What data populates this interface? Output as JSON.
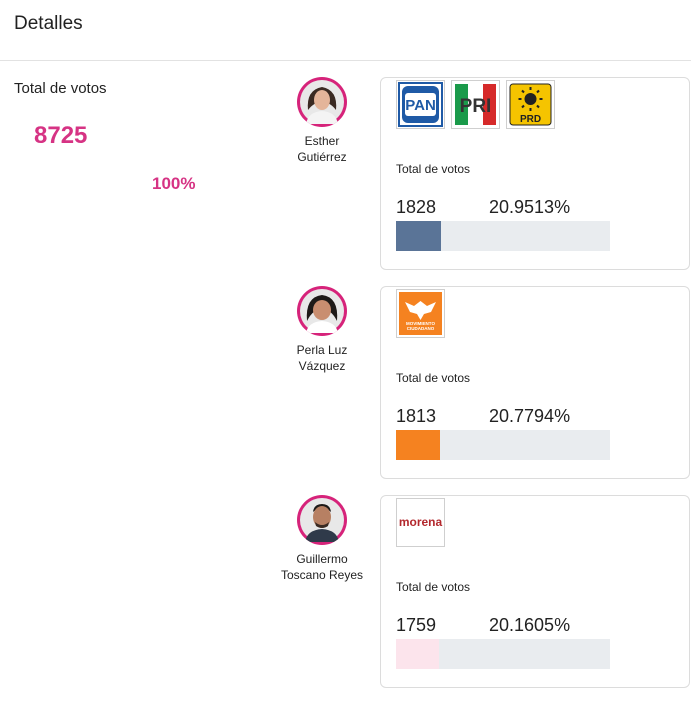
{
  "header": {
    "title": "Detalles"
  },
  "summary": {
    "label": "Total de votos",
    "total": "8725",
    "percent": "100%"
  },
  "candidates": [
    {
      "name_line1": "Esther",
      "name_line2": "Gutiérrez",
      "parties": [
        "PAN",
        "PRI",
        "PRD"
      ],
      "votes_label": "Total de votos",
      "votes": "1828",
      "percent_text": "20.9513%",
      "percent_value": 20.9513,
      "bar_color": "#5a7497"
    },
    {
      "name_line1": "Perla Luz",
      "name_line2": "Vázquez",
      "parties": [
        "MOVIMIENTO CIUDADANO"
      ],
      "votes_label": "Total de votos",
      "votes": "1813",
      "percent_text": "20.7794%",
      "percent_value": 20.7794,
      "bar_color": "#f58220"
    },
    {
      "name_line1": "Guillermo",
      "name_line2": "Toscano Reyes",
      "parties": [
        "morena"
      ],
      "votes_label": "Total de votos",
      "votes": "1759",
      "percent_text": "20.1605%",
      "percent_value": 20.1605,
      "bar_color": "#fce4ec"
    }
  ],
  "colors": {
    "accent": "#d63384",
    "avatar_ring": "#d6237a",
    "track": "#e9ecef"
  }
}
